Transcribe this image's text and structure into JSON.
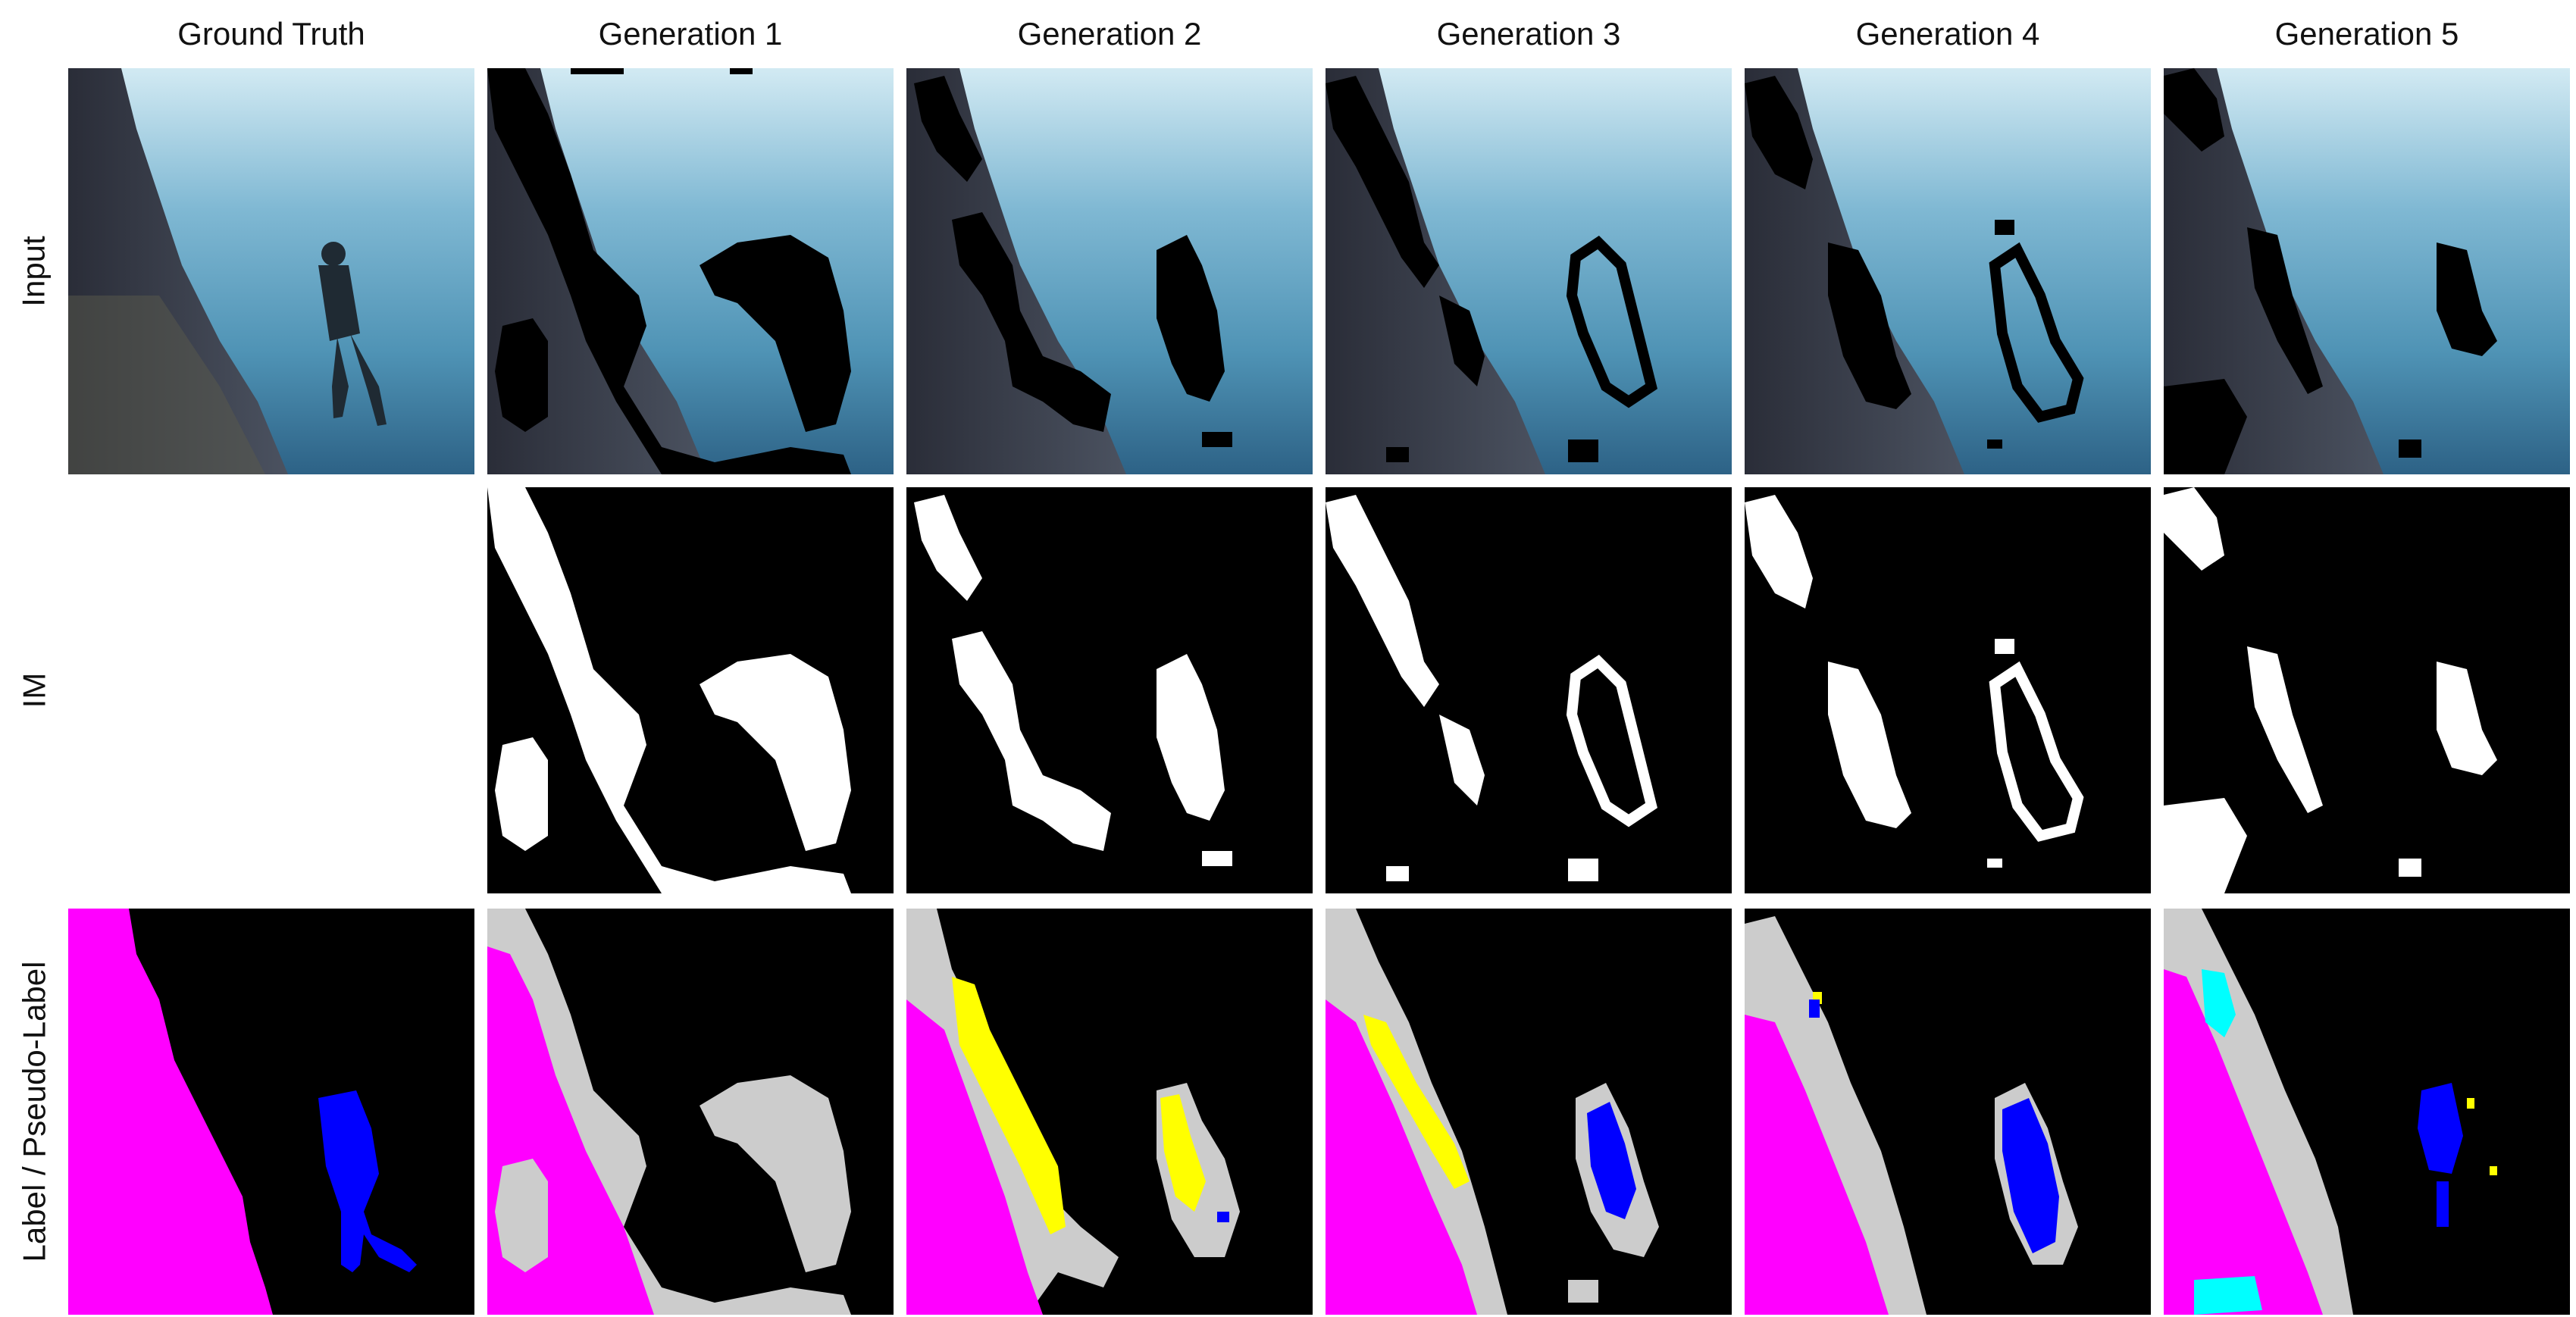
{
  "columns": [
    "Ground Truth",
    "Generation 1",
    "Generation 2",
    "Generation 3",
    "Generation 4",
    "Generation 5"
  ],
  "rows": [
    "Input",
    "IM",
    "Label / Pseudo-Label"
  ],
  "colors": {
    "mask_black": "#000000",
    "mask_white": "#ffffff",
    "gray": "#cccccc",
    "magenta": "#ff00ff",
    "blue": "#0000ff",
    "yellow": "#ffff00",
    "cyan": "#00ffff",
    "water_top": "#cfe8f2",
    "water_mid": "#4f97b8",
    "water_bottom": "#2a5e82",
    "reef": "#3a3f4c"
  }
}
